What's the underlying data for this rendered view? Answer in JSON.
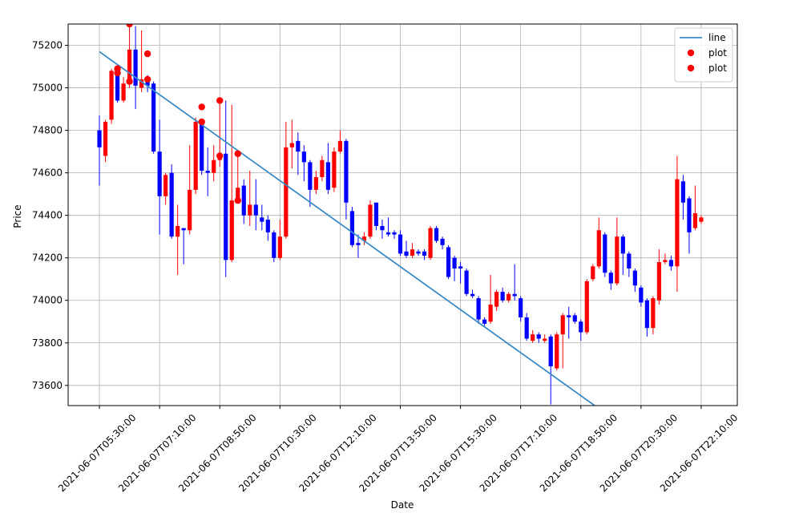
{
  "chart_data": {
    "type": "candlestick",
    "xlabel": "Date",
    "ylabel": "Price",
    "xlim": [
      "2021-06-07T04:38:00",
      "2021-06-07T23:10:00"
    ],
    "ylim": [
      73505,
      75300
    ],
    "xticks": [
      "2021-06-07T05:30:00",
      "2021-06-07T07:10:00",
      "2021-06-07T08:50:00",
      "2021-06-07T10:30:00",
      "2021-06-07T12:10:00",
      "2021-06-07T13:50:00",
      "2021-06-07T15:30:00",
      "2021-06-07T17:10:00",
      "2021-06-07T18:50:00",
      "2021-06-07T20:30:00",
      "2021-06-07T22:10:00"
    ],
    "yticks": [
      73600,
      73800,
      74000,
      74200,
      74400,
      74600,
      74800,
      75000,
      75200
    ],
    "grid": true,
    "legend": "upper right",
    "candles": {
      "up_color": "#ff0000",
      "down_color": "#0000ff",
      "x": [
        "2021-06-07T05:30:00",
        "2021-06-07T05:40:00",
        "2021-06-07T05:50:00",
        "2021-06-07T06:00:00",
        "2021-06-07T06:10:00",
        "2021-06-07T06:20:00",
        "2021-06-07T06:30:00",
        "2021-06-07T06:40:00",
        "2021-06-07T06:50:00",
        "2021-06-07T07:00:00",
        "2021-06-07T07:10:00",
        "2021-06-07T07:20:00",
        "2021-06-07T07:30:00",
        "2021-06-07T07:40:00",
        "2021-06-07T07:50:00",
        "2021-06-07T08:00:00",
        "2021-06-07T08:10:00",
        "2021-06-07T08:20:00",
        "2021-06-07T08:30:00",
        "2021-06-07T08:40:00",
        "2021-06-07T08:50:00",
        "2021-06-07T09:00:00",
        "2021-06-07T09:10:00",
        "2021-06-07T09:20:00",
        "2021-06-07T09:30:00",
        "2021-06-07T09:40:00",
        "2021-06-07T09:50:00",
        "2021-06-07T10:00:00",
        "2021-06-07T10:10:00",
        "2021-06-07T10:20:00",
        "2021-06-07T10:30:00",
        "2021-06-07T10:40:00",
        "2021-06-07T10:50:00",
        "2021-06-07T11:00:00",
        "2021-06-07T11:10:00",
        "2021-06-07T11:20:00",
        "2021-06-07T11:30:00",
        "2021-06-07T11:40:00",
        "2021-06-07T11:50:00",
        "2021-06-07T12:00:00",
        "2021-06-07T12:10:00",
        "2021-06-07T12:20:00",
        "2021-06-07T12:30:00",
        "2021-06-07T12:40:00",
        "2021-06-07T12:50:00",
        "2021-06-07T13:00:00",
        "2021-06-07T13:10:00",
        "2021-06-07T13:20:00",
        "2021-06-07T13:30:00",
        "2021-06-07T13:40:00",
        "2021-06-07T13:50:00",
        "2021-06-07T14:00:00",
        "2021-06-07T14:10:00",
        "2021-06-07T14:20:00",
        "2021-06-07T14:30:00",
        "2021-06-07T14:40:00",
        "2021-06-07T14:50:00",
        "2021-06-07T15:00:00",
        "2021-06-07T15:10:00",
        "2021-06-07T15:20:00",
        "2021-06-07T15:30:00",
        "2021-06-07T15:40:00",
        "2021-06-07T15:50:00",
        "2021-06-07T16:00:00",
        "2021-06-07T16:10:00",
        "2021-06-07T16:20:00",
        "2021-06-07T16:30:00",
        "2021-06-07T16:40:00",
        "2021-06-07T16:50:00",
        "2021-06-07T17:00:00",
        "2021-06-07T17:10:00",
        "2021-06-07T17:20:00",
        "2021-06-07T17:30:00",
        "2021-06-07T17:40:00",
        "2021-06-07T17:50:00",
        "2021-06-07T18:00:00",
        "2021-06-07T18:10:00",
        "2021-06-07T18:20:00",
        "2021-06-07T18:30:00",
        "2021-06-07T18:40:00",
        "2021-06-07T18:50:00",
        "2021-06-07T19:00:00",
        "2021-06-07T19:10:00",
        "2021-06-07T19:20:00",
        "2021-06-07T19:30:00",
        "2021-06-07T19:40:00",
        "2021-06-07T19:50:00",
        "2021-06-07T20:00:00",
        "2021-06-07T20:10:00",
        "2021-06-07T20:20:00",
        "2021-06-07T20:30:00",
        "2021-06-07T20:40:00",
        "2021-06-07T20:50:00",
        "2021-06-07T21:00:00",
        "2021-06-07T21:10:00",
        "2021-06-07T21:20:00",
        "2021-06-07T21:30:00",
        "2021-06-07T21:40:00",
        "2021-06-07T21:50:00",
        "2021-06-07T22:00:00",
        "2021-06-07T22:10:00"
      ],
      "open": [
        74800,
        74680,
        74850,
        75080,
        74940,
        75020,
        75180,
        75000,
        75030,
        75020,
        74700,
        74490,
        74600,
        74300,
        74340,
        74330,
        74520,
        74830,
        74610,
        74600,
        74660,
        74690,
        74190,
        74470,
        74540,
        74400,
        74450,
        74390,
        74380,
        74320,
        74200,
        74300,
        74720,
        74750,
        74700,
        74650,
        74520,
        74580,
        74650,
        74530,
        74700,
        74750,
        74420,
        74270,
        74280,
        74300,
        74460,
        74350,
        74320,
        74320,
        74310,
        74230,
        74210,
        74230,
        74230,
        74200,
        74340,
        74290,
        74250,
        74200,
        74160,
        74140,
        74030,
        74010,
        73910,
        73900,
        73970,
        74040,
        74000,
        74030,
        74010,
        73920,
        73810,
        73840,
        73810,
        73830,
        73680,
        73840,
        73930,
        73930,
        73900,
        73850,
        74100,
        74160,
        74310,
        74130,
        74080,
        74300,
        74220,
        74140,
        74060,
        74000,
        73870,
        74000,
        74180,
        74190,
        74160,
        74560,
        74480,
        74340,
        74370
      ],
      "high": [
        74870,
        74850,
        75090,
        75100,
        75050,
        75300,
        75290,
        75270,
        75060,
        75030,
        74850,
        74600,
        74640,
        74450,
        74340,
        74730,
        74860,
        74840,
        74720,
        74730,
        74940,
        74940,
        74920,
        74680,
        74570,
        74610,
        74570,
        74450,
        74400,
        74330,
        74380,
        74840,
        74850,
        74790,
        74730,
        74660,
        74610,
        74680,
        74740,
        74720,
        74800,
        74760,
        74440,
        74310,
        74320,
        74470,
        74460,
        74380,
        74390,
        74330,
        74330,
        74280,
        74270,
        74240,
        74240,
        74350,
        74350,
        74300,
        74260,
        74210,
        74180,
        74150,
        74050,
        74020,
        73920,
        74120,
        74050,
        74060,
        74040,
        74170,
        74020,
        73940,
        73860,
        73850,
        73840,
        73840,
        73850,
        73940,
        73970,
        73940,
        73910,
        74100,
        74170,
        74390,
        74320,
        74140,
        74390,
        74310,
        74230,
        74150,
        74070,
        74010,
        74020,
        74240,
        74220,
        74210,
        74680,
        74590,
        74490,
        74540,
        74400
      ],
      "low": [
        74540,
        74650,
        74830,
        74930,
        74930,
        75000,
        74900,
        74980,
        74980,
        74690,
        74310,
        74450,
        74290,
        74120,
        74170,
        74310,
        74500,
        74590,
        74490,
        74560,
        74630,
        74110,
        74180,
        74460,
        74360,
        74350,
        74330,
        74330,
        74280,
        74180,
        74190,
        74290,
        74620,
        74590,
        74560,
        74440,
        74500,
        74560,
        74500,
        74510,
        74690,
        74380,
        74250,
        74200,
        74260,
        74290,
        74330,
        74290,
        74300,
        74290,
        74210,
        74200,
        74200,
        74210,
        74190,
        74190,
        74270,
        74240,
        74100,
        74090,
        74080,
        74020,
        74010,
        73890,
        73880,
        73890,
        73950,
        73990,
        73990,
        74000,
        73900,
        73810,
        73800,
        73800,
        73800,
        73510,
        73670,
        73680,
        73820,
        73890,
        73810,
        73840,
        74090,
        74150,
        74110,
        74050,
        74070,
        74120,
        74110,
        74040,
        73970,
        73830,
        73840,
        73980,
        74170,
        74140,
        74040,
        74380,
        74220,
        74330,
        74360
      ],
      "close": [
        74720,
        74840,
        75080,
        74940,
        75020,
        75180,
        75010,
        75040,
        75010,
        74700,
        74490,
        74590,
        74300,
        74350,
        74330,
        74520,
        74840,
        74610,
        74600,
        74660,
        74690,
        74190,
        74470,
        74530,
        74400,
        74450,
        74400,
        74370,
        74320,
        74200,
        74300,
        74720,
        74740,
        74700,
        74650,
        74520,
        74580,
        74660,
        74520,
        74700,
        74750,
        74460,
        74260,
        74260,
        74300,
        74450,
        74350,
        74330,
        74310,
        74310,
        74220,
        74210,
        74240,
        74220,
        74210,
        74340,
        74280,
        74260,
        74110,
        74150,
        74150,
        74030,
        74020,
        73910,
        73890,
        73980,
        74040,
        74000,
        74030,
        74020,
        73920,
        73820,
        73840,
        73820,
        73820,
        73690,
        73840,
        73930,
        73920,
        73900,
        73850,
        74090,
        74160,
        74330,
        74130,
        74080,
        74300,
        74220,
        74150,
        74070,
        73990,
        73870,
        74010,
        74180,
        74190,
        74160,
        74570,
        74460,
        74320,
        74410,
        74390
      ]
    },
    "series": [
      {
        "name": "line",
        "type": "line",
        "color": "#3a8dc8",
        "x": [
          "2021-06-07T05:30:00",
          "2021-06-07T22:10:00"
        ],
        "values": [
          75170,
          73147
        ]
      },
      {
        "name": "plot",
        "type": "scatter",
        "color": "#ff0000",
        "x": [
          "2021-06-07T06:00:00",
          "2021-06-07T06:20:00",
          "2021-06-07T06:50:00",
          "2021-06-07T08:20:00",
          "2021-06-07T08:50:00",
          "2021-06-07T09:20:00"
        ],
        "values": [
          75090,
          75300,
          75160,
          74910,
          74940,
          74690
        ]
      },
      {
        "name": "plot",
        "type": "scatter",
        "color": "#ff0000",
        "x": [
          "2021-06-07T06:00:00",
          "2021-06-07T06:20:00",
          "2021-06-07T06:50:00",
          "2021-06-07T08:20:00",
          "2021-06-07T08:50:00",
          "2021-06-07T09:20:00"
        ],
        "values": [
          75070,
          75030,
          75040,
          74840,
          74680,
          74470
        ]
      }
    ]
  }
}
